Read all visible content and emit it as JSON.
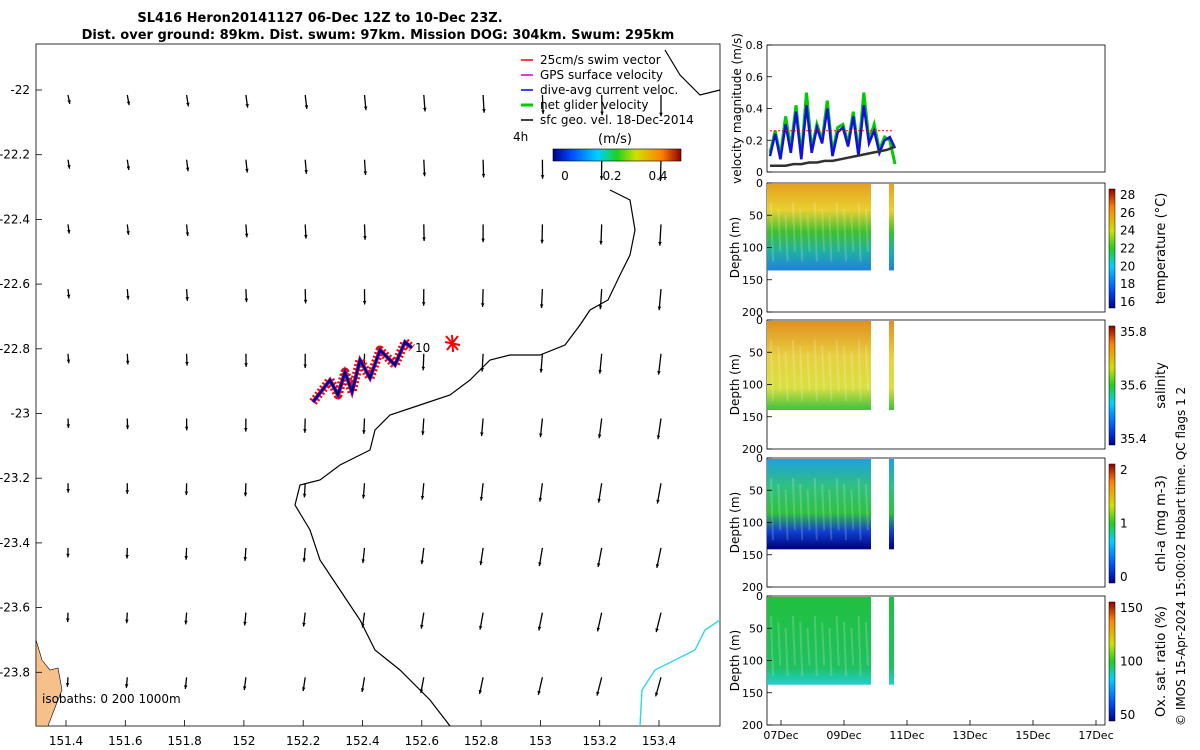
{
  "title_line1": "SL416 Heron20141127 06-Dec 12Z to 10-Dec 23Z.",
  "title_line2": "Dist. over ground: 89km. Dist. swum: 97km. Mission DOG: 304km. Swum: 295km",
  "copyright": "© IMOS 15-Apr-2024 15:00:02 Hobart time. QC flags 1  2",
  "map": {
    "x_ticks": [
      "151.4",
      "151.6",
      "151.8",
      "152",
      "152.2",
      "152.4",
      "152.6",
      "152.8",
      "153",
      "153.2",
      "153.4"
    ],
    "y_ticks": [
      "-22",
      "-22.2",
      "-22.4",
      "-22.6",
      "-22.8",
      "-23",
      "-23.2",
      "-23.4",
      "-23.6",
      "-23.8"
    ],
    "legend": [
      {
        "label": "25cm/s swim vector",
        "color": "#ff0000"
      },
      {
        "label": "GPS surface velocity",
        "color": "#cc00cc"
      },
      {
        "label": "dive-avg current veloc.",
        "color": "#0000ff"
      },
      {
        "label": "net glider velocity",
        "color": "#00cc00"
      },
      {
        "label": "sfc geo. vel. 18-Dec-2014",
        "color": "#000000"
      }
    ],
    "colorbar_label": "(m/s)",
    "colorbar_ticks": [
      "0",
      "0.2",
      "0.4"
    ],
    "time_label": "4h",
    "isobaths_label": "isobaths: 0   200  1000m",
    "marker_label": "10"
  },
  "chart_data": [
    {
      "type": "line",
      "title": "",
      "ylabel": "velocity magnitude (m/s)",
      "ylim": [
        0,
        0.8
      ],
      "yticks": [
        "0",
        "0.2",
        "0.4",
        "0.6",
        "0.8"
      ],
      "series": [
        {
          "name": "net glider velocity",
          "values": [
            0.12,
            0.26,
            0.1,
            0.35,
            0.15,
            0.42,
            0.1,
            0.5,
            0.14,
            0.3,
            0.2,
            0.45,
            0.12,
            0.28,
            0.3,
            0.18,
            0.38,
            0.12,
            0.5,
            0.2,
            0.3,
            0.14,
            0.22,
            0.2,
            0.05
          ]
        },
        {
          "name": "dive-avg current veloc.",
          "values": [
            0.1,
            0.24,
            0.08,
            0.3,
            0.12,
            0.38,
            0.08,
            0.42,
            0.12,
            0.28,
            0.18,
            0.4,
            0.1,
            0.25,
            0.28,
            0.16,
            0.35,
            0.1,
            0.42,
            0.18,
            0.26,
            0.12,
            0.2,
            0.22,
            0.15
          ]
        },
        {
          "name": "sfc geo. vel.",
          "values": [
            0.04,
            0.04,
            0.04,
            0.05,
            0.05,
            0.06,
            0.06,
            0.07,
            0.07,
            0.08,
            0.09,
            0.1,
            0.11,
            0.12,
            0.13,
            0.14,
            0.16
          ]
        }
      ]
    },
    {
      "type": "heatmap",
      "ylabel": "Depth (m)",
      "yticks": [
        "0",
        "50",
        "100",
        "150",
        "200"
      ],
      "colorbar_label": "temperature (°C)",
      "colorbar_ticks": [
        "28",
        "26",
        "24",
        "22",
        "20",
        "18",
        "16"
      ]
    },
    {
      "type": "heatmap",
      "ylabel": "Depth (m)",
      "yticks": [
        "0",
        "50",
        "100",
        "150",
        "200"
      ],
      "colorbar_label": "salinity",
      "colorbar_ticks": [
        "35.8",
        "35.6",
        "35.4"
      ]
    },
    {
      "type": "heatmap",
      "ylabel": "Depth (m)",
      "yticks": [
        "0",
        "50",
        "100",
        "150",
        "200"
      ],
      "colorbar_label": "chl-a (mg m-3)",
      "colorbar_ticks": [
        "2",
        "1",
        "0"
      ]
    },
    {
      "type": "heatmap",
      "ylabel": "Depth (m)",
      "yticks": [
        "0",
        "50",
        "100",
        "150",
        "200"
      ],
      "colorbar_label": "Ox. sat. ratio (%)",
      "colorbar_ticks": [
        "150",
        "100",
        "50"
      ],
      "xticks": [
        "07Dec",
        "09Dec",
        "11Dec",
        "13Dec",
        "15Dec",
        "17Dec"
      ]
    }
  ]
}
